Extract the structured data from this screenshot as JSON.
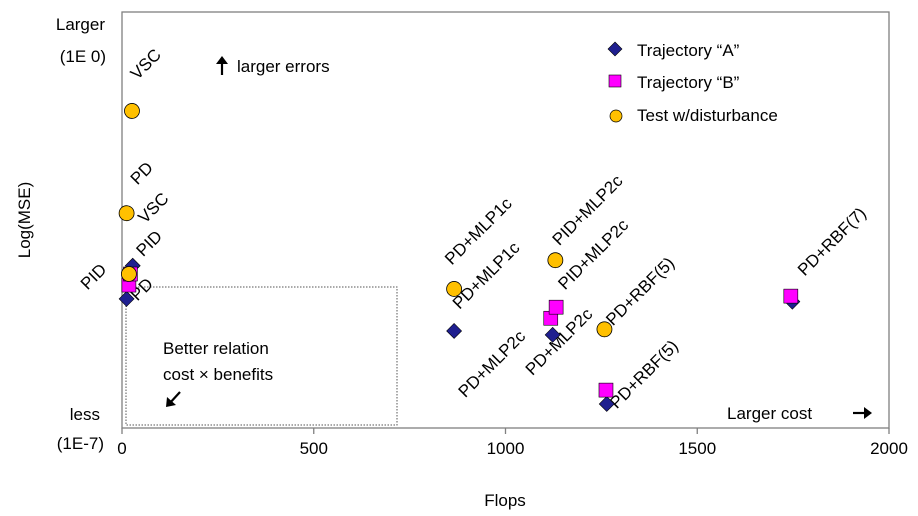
{
  "chart_data": {
    "type": "scatter",
    "xlabel": "Flops",
    "ylabel": "Log(MSE)",
    "xlim": [
      0,
      2000
    ],
    "ylim": [
      -7,
      0
    ],
    "x_ticks": [
      0,
      500,
      1000,
      1500,
      2000
    ],
    "x_tick_labels": [
      "0",
      "500",
      "1000",
      "1500",
      "2000"
    ],
    "y_tick_labels": {
      "top_line1": "Larger",
      "top_line2": "(1E 0)",
      "bottom_line1": "less",
      "bottom_line2": "(1E-7)"
    },
    "grid": false,
    "legend_position": "top-right",
    "series": [
      {
        "name": "Trajectory “A”",
        "marker": "diamond",
        "color": "#1f1f8f",
        "points": [
          {
            "x": 12,
            "y": -4.9,
            "label": "PD"
          },
          {
            "x": 28,
            "y": -4.3,
            "label": "VSC"
          },
          {
            "x": 866,
            "y": -5.48,
            "label": "PD+MLP2c"
          },
          {
            "x": 1123,
            "y": -5.55,
            "label": "PD+MLP2c"
          },
          {
            "x": 1264,
            "y": -6.8,
            "label": "PD+RBF(5)"
          },
          {
            "x": 1748,
            "y": -4.95,
            "label": "PD+RBF(7)"
          }
        ]
      },
      {
        "name": "Trajectory “B”",
        "marker": "square",
        "color": "#ff00ff",
        "points": [
          {
            "x": 18,
            "y": -4.65,
            "label": ""
          },
          {
            "x": 22,
            "y": -4.45,
            "label": ""
          },
          {
            "x": 1118,
            "y": -5.25,
            "label": ""
          },
          {
            "x": 1132,
            "y": -5.05,
            "label": ""
          },
          {
            "x": 1262,
            "y": -6.55,
            "label": ""
          },
          {
            "x": 1744,
            "y": -4.85,
            "label": ""
          }
        ]
      },
      {
        "name": "Test w/disturbance",
        "marker": "circle",
        "color": "#ffc000",
        "points": [
          {
            "x": 26,
            "y": -1.5,
            "label": "VSC"
          },
          {
            "x": 12,
            "y": -3.35,
            "label": "PD"
          },
          {
            "x": 18,
            "y": -4.45,
            "label": "PID"
          },
          {
            "x": 866,
            "y": -4.72,
            "label": "PD+MLP1c"
          },
          {
            "x": 1130,
            "y": -4.2,
            "label": "PID+MLP2c"
          },
          {
            "x": 1258,
            "y": -5.45,
            "label": "PD+MLP2c"
          }
        ]
      }
    ],
    "point_labels": [
      {
        "text": "VSC",
        "x": 40,
        "y": -0.95
      },
      {
        "text": "PD",
        "x": 40,
        "y": -2.85
      },
      {
        "text": "VSC",
        "x": 60,
        "y": -3.55
      },
      {
        "text": "PID",
        "x": 55,
        "y": -4.15
      },
      {
        "text": "PID",
        "x": -90,
        "y": -4.75
      },
      {
        "text": "PD",
        "x": 40,
        "y": -4.95
      },
      {
        "text": "PD+MLP1c",
        "x": 860,
        "y": -4.3
      },
      {
        "text": "PD+MLP1c",
        "x": 880,
        "y": -5.1
      },
      {
        "text": "PID+MLP2c",
        "x": 1140,
        "y": -3.95
      },
      {
        "text": "PID+MLP2c",
        "x": 1155,
        "y": -4.75
      },
      {
        "text": "PD+MLP2c",
        "x": 895,
        "y": -6.7
      },
      {
        "text": "PD+MLP2c",
        "x": 1070,
        "y": -6.3
      },
      {
        "text": "PD+RBF(5)",
        "x": 1280,
        "y": -5.4
      },
      {
        "text": "PD+RBF(5)",
        "x": 1290,
        "y": -6.9
      },
      {
        "text": "PD+RBF(7)",
        "x": 1780,
        "y": -4.5
      }
    ],
    "annotations": {
      "larger_errors": "larger errors",
      "better_relation_line1": "Better relation",
      "better_relation_line2": "cost × benefits",
      "larger_cost": "Larger cost"
    }
  }
}
